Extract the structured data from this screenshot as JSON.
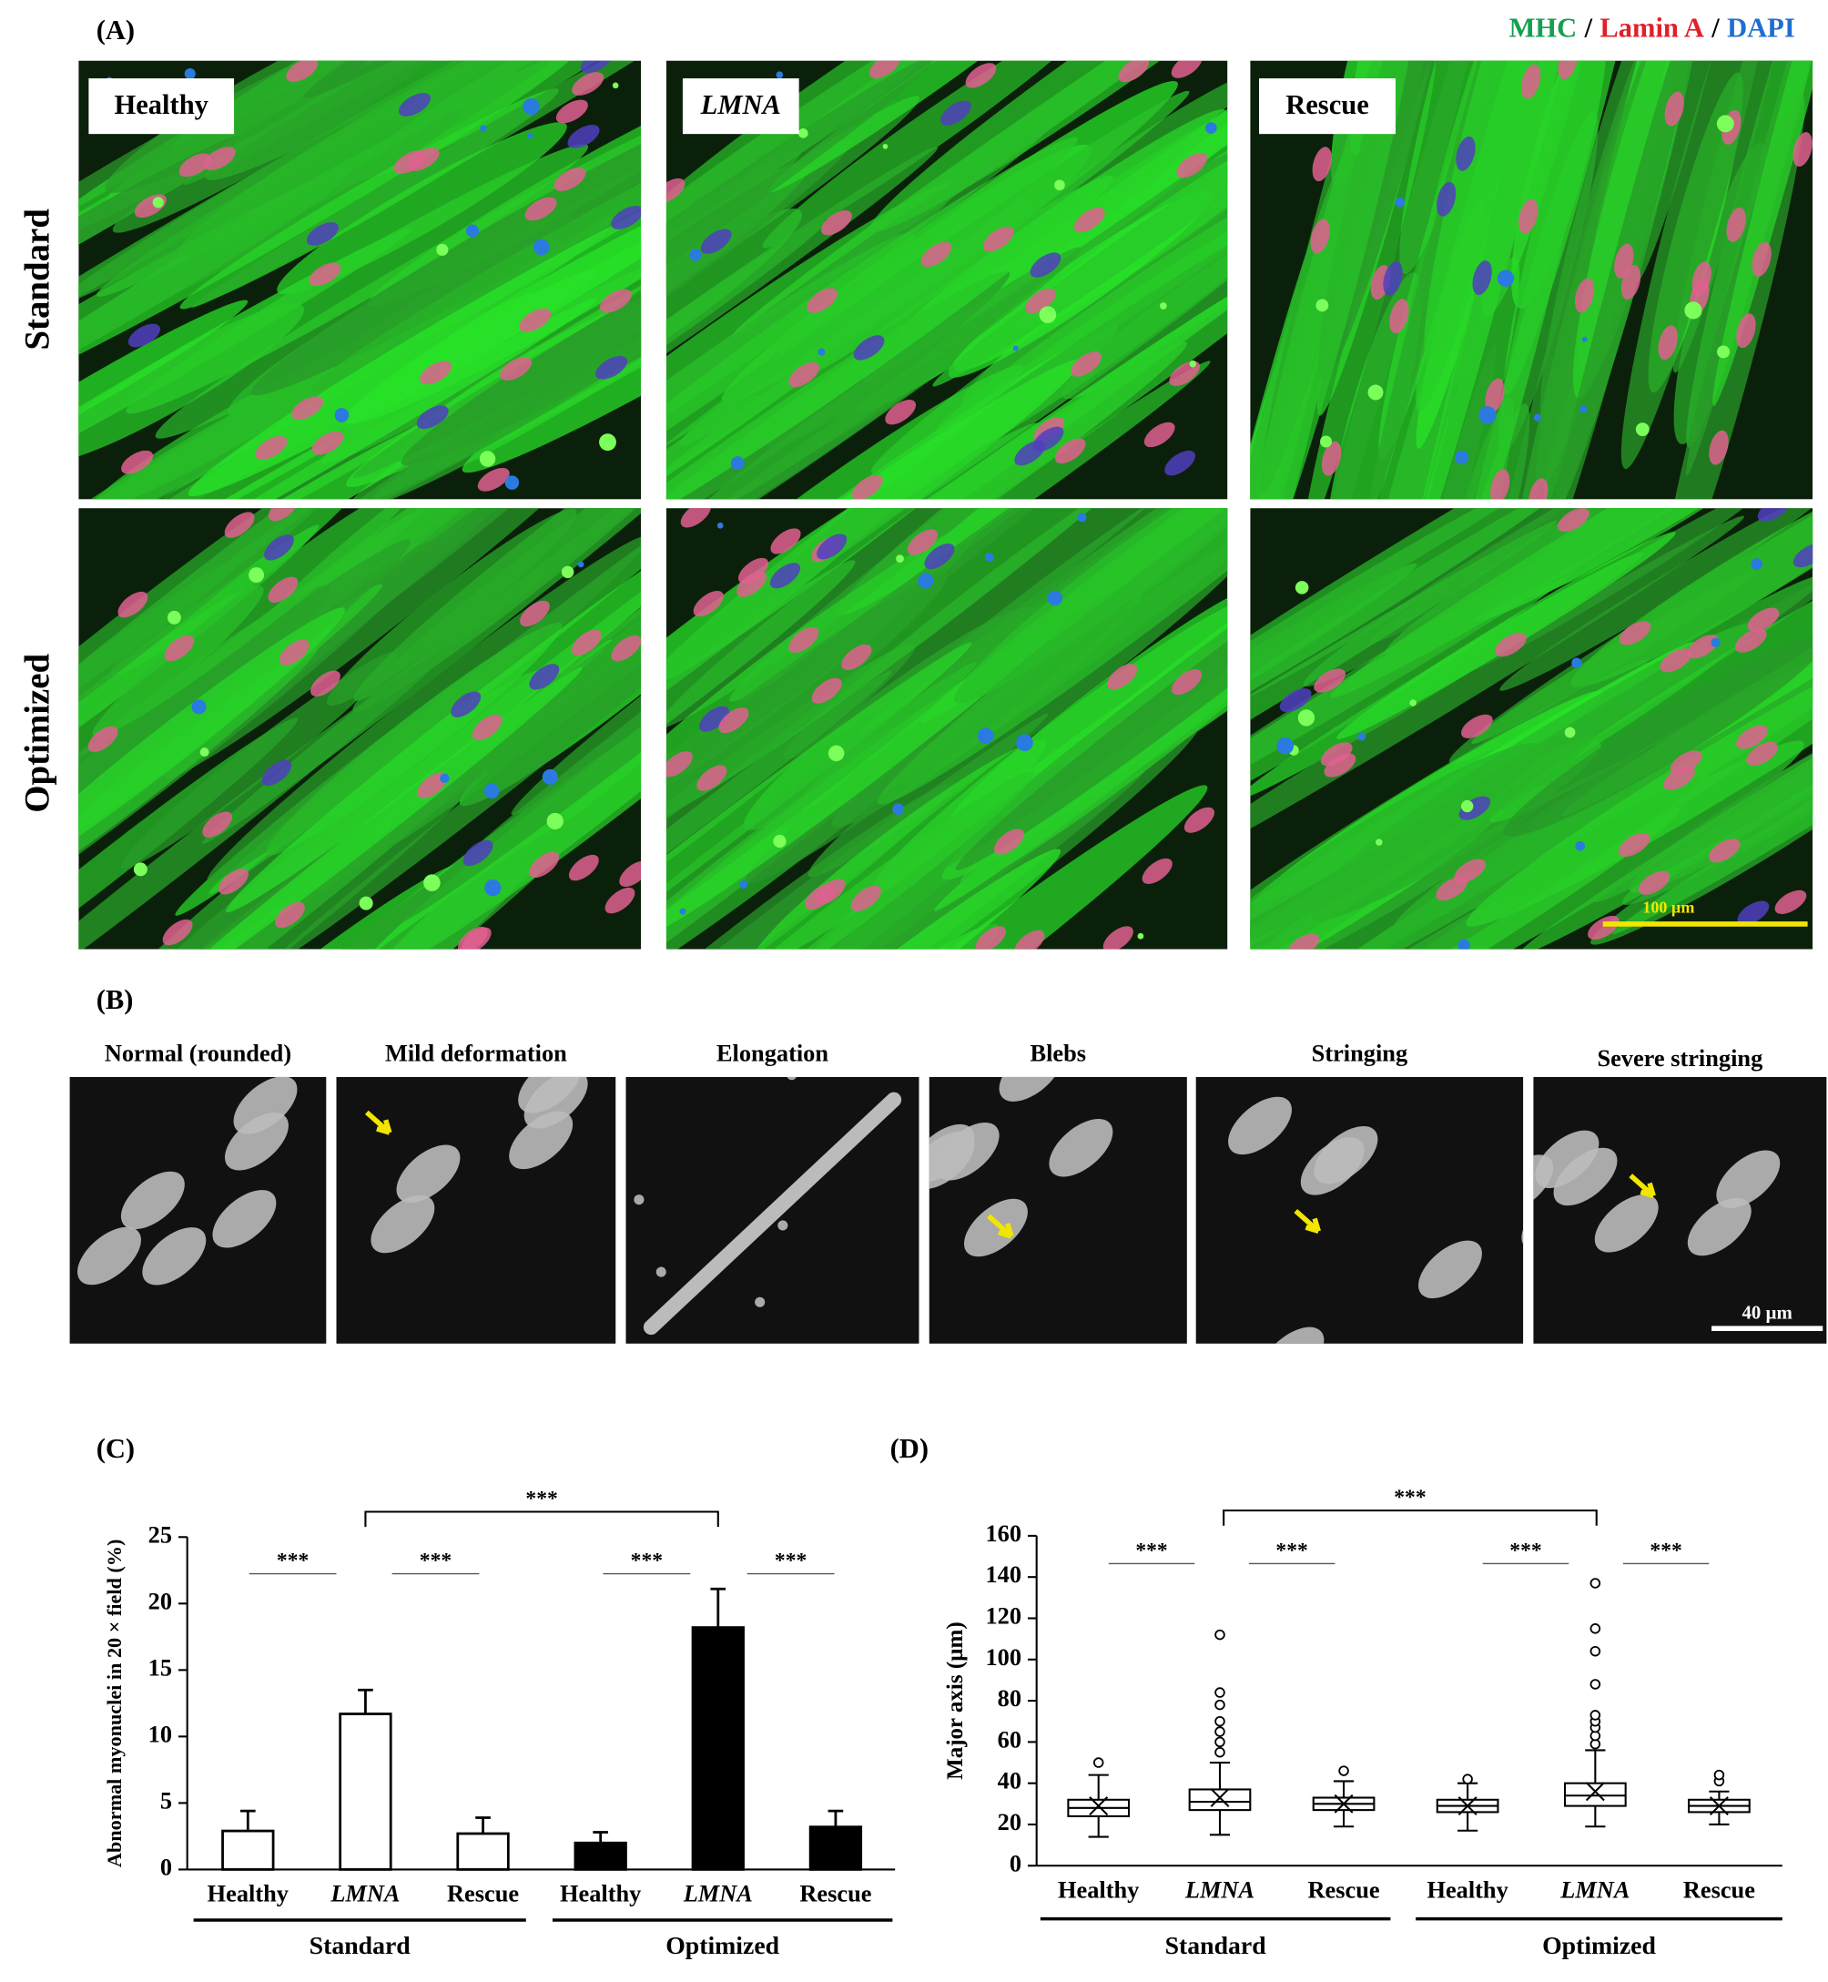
{
  "panel_a": {
    "label": "(A)",
    "stains": [
      {
        "name": "MHC",
        "color": "#14a050"
      },
      {
        "name": "Lamin A",
        "color": "#e0202a"
      },
      {
        "name": "DAPI",
        "color": "#1e6fd0"
      }
    ],
    "separator": "/",
    "rows": [
      "Standard",
      "Optimized"
    ],
    "columns": [
      "Healthy",
      "LMNA",
      "Rescue"
    ],
    "scale_bar": "100 µm"
  },
  "panel_b": {
    "label": "(B)",
    "phenotypes": [
      "Normal (rounded)",
      "Mild deformation",
      "Elongation",
      "Blebs",
      "Stringing",
      "Severe stringing"
    ],
    "scale_bar": "40 µm"
  },
  "chart_data": [
    {
      "type": "bar",
      "panel": "(C)",
      "ylabel": "Abnormal myonuclei in 20 × field (%)",
      "categories": [
        "Healthy",
        "LMNA",
        "Rescue"
      ],
      "series": [
        {
          "name": "Standard",
          "color": "#ffffff",
          "values": [
            2.9,
            11.7,
            2.7
          ],
          "errors": [
            1.5,
            1.8,
            1.2
          ]
        },
        {
          "name": "Optimized",
          "color": "#000000",
          "values": [
            2.0,
            18.2,
            3.2
          ],
          "errors": [
            0.8,
            2.9,
            1.2
          ]
        }
      ],
      "ylim": [
        0,
        25
      ],
      "yticks": [
        0,
        5,
        10,
        15,
        20,
        25
      ],
      "significance": [
        "***",
        "***",
        "***",
        "***",
        "***"
      ]
    },
    {
      "type": "box",
      "panel": "(D)",
      "ylabel": "Major axis (µm)",
      "categories": [
        "Healthy",
        "LMNA",
        "Rescue"
      ],
      "series": [
        {
          "name": "Standard",
          "boxes": [
            {
              "whisker_low": 14,
              "q1": 24,
              "median": 28,
              "q3": 32,
              "whisker_high": 44,
              "mean": 29,
              "outliers": [
                50
              ]
            },
            {
              "whisker_low": 15,
              "q1": 27,
              "median": 31,
              "q3": 37,
              "whisker_high": 50,
              "mean": 33,
              "outliers": [
                55,
                60,
                65,
                70,
                78,
                84,
                112
              ]
            },
            {
              "whisker_low": 19,
              "q1": 27,
              "median": 30,
              "q3": 33,
              "whisker_high": 41,
              "mean": 30,
              "outliers": [
                46
              ]
            }
          ]
        },
        {
          "name": "Optimized",
          "boxes": [
            {
              "whisker_low": 17,
              "q1": 26,
              "median": 29,
              "q3": 32,
              "whisker_high": 40,
              "mean": 29,
              "outliers": [
                42
              ]
            },
            {
              "whisker_low": 19,
              "q1": 29,
              "median": 34,
              "q3": 40,
              "whisker_high": 56,
              "mean": 36,
              "outliers": [
                59,
                63,
                67,
                70,
                73,
                88,
                104,
                115,
                137
              ]
            },
            {
              "whisker_low": 20,
              "q1": 26,
              "median": 29,
              "q3": 32,
              "whisker_high": 36,
              "mean": 29,
              "outliers": [
                41,
                44
              ]
            }
          ]
        }
      ],
      "ylim": [
        0,
        160
      ],
      "yticks": [
        0,
        20,
        40,
        60,
        80,
        100,
        120,
        140,
        160
      ],
      "significance": [
        "***",
        "***",
        "***",
        "***",
        "***"
      ]
    }
  ]
}
